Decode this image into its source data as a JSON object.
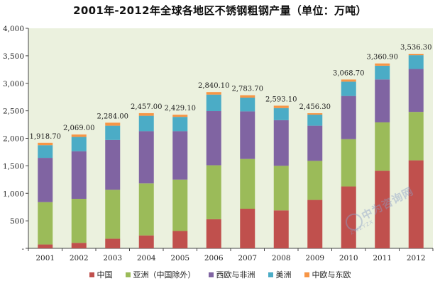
{
  "chart_data": {
    "type": "bar",
    "stacked": true,
    "title": "2001年-2012年全球各地区不锈钢粗钢产量（单位：万吨）",
    "categories": [
      "2001",
      "2002",
      "2003",
      "2004",
      "2005",
      "2006",
      "2007",
      "2008",
      "2009",
      "2010",
      "2011",
      "2012"
    ],
    "ylim": [
      0,
      4000
    ],
    "yticks": [
      0,
      500,
      1000,
      1500,
      2000,
      2500,
      3000,
      3500,
      4000
    ],
    "ytick_labels": [
      "-",
      "500",
      "1,000",
      "1,500",
      "2,000",
      "2,500",
      "3,000",
      "3,500",
      "4,000"
    ],
    "grid": false,
    "legend_position": "bottom",
    "totals": [
      1918.7,
      2069.0,
      2284.0,
      2457.0,
      2429.1,
      2840.1,
      2783.7,
      2593.1,
      2456.3,
      3068.7,
      3360.9,
      3536.3
    ],
    "total_labels": [
      "1,918.70",
      "2,069.00",
      "2,284.00",
      "2,457.00",
      "2,429.10",
      "2,840.10",
      "2,783.70",
      "2,593.10",
      "2,456.30",
      "3,068.70",
      "3,360.90",
      "3,536.30"
    ],
    "series": [
      {
        "name": "中国",
        "color": "#C0504D",
        "values": [
          70,
          100,
          175,
          235,
          315,
          530,
          720,
          690,
          880,
          1125,
          1410,
          1600
        ]
      },
      {
        "name": "亚洲（中国除外）",
        "color": "#9BBB59",
        "values": [
          770,
          800,
          890,
          945,
          935,
          980,
          905,
          810,
          710,
          860,
          880,
          880
        ]
      },
      {
        "name": "西欧与非洲",
        "color": "#8064A2",
        "values": [
          805,
          865,
          905,
          950,
          880,
          985,
          865,
          830,
          640,
          785,
          780,
          780
        ]
      },
      {
        "name": "美洲",
        "color": "#4BACC6",
        "values": [
          230,
          260,
          260,
          280,
          260,
          300,
          250,
          220,
          200,
          260,
          250,
          250
        ]
      },
      {
        "name": "中欧与东欧",
        "color": "#F79646",
        "values": [
          43.7,
          44,
          54,
          47,
          39.1,
          45.1,
          43.7,
          43.1,
          26.3,
          38.7,
          40.9,
          26.3
        ]
      }
    ]
  },
  "watermark": {
    "text": "中为咨询网",
    "subtext": "ZWZYZX"
  }
}
